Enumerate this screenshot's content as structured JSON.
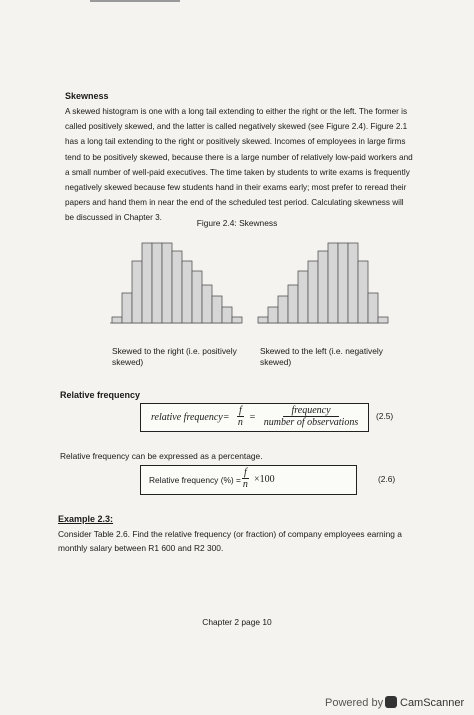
{
  "section": {
    "title": "Skewness",
    "paragraph": "A skewed histogram is one with a long tail extending to either the right or the left. The former is called positively skewed, and the latter is called negatively skewed (see Figure 2.4). Figure 2.1 has a long tail extending to the right or positively skewed. Incomes of employees in large firms tend to be positively skewed, because there is a large number of relatively low-paid workers and a small number of well-paid executives. The time taken by students to write exams is frequently negatively skewed because few students hand in their exams early; most prefer to reread their papers and hand them in near the end of the scheduled test period. Calculating skewness will be discussed in Chapter 3."
  },
  "figure": {
    "caption": "Figure 2.4: Skewness",
    "labels": [
      "Skewed to the right (i.e. positively skewed)",
      "Skewed to the left (i.e. negatively skewed)"
    ]
  },
  "relative_frequency": {
    "heading": "Relative frequency",
    "formula": {
      "lhs": "relative frequency=",
      "numerator": "f",
      "denominator": "n",
      "equals": "=",
      "numerator2": "frequency",
      "denominator2": "number of observations",
      "number": "(2.5)"
    },
    "percentage_text": "Relative frequency can be expressed as a percentage.",
    "formula2": {
      "lhs": "Relative frequency (%) =",
      "numerator": "f",
      "denominator": "n",
      "rhs": "×100",
      "number": "(2.6)"
    }
  },
  "example": {
    "title": "Example 2.3:",
    "text": "Consider Table 2.6. Find the relative frequency (or fraction) of company employees earning a monthly salary between R1 600 and R2 300."
  },
  "footer": "Chapter 2 page 10",
  "watermark": {
    "powered": "Powered by",
    "brand": "CamScanner"
  }
}
